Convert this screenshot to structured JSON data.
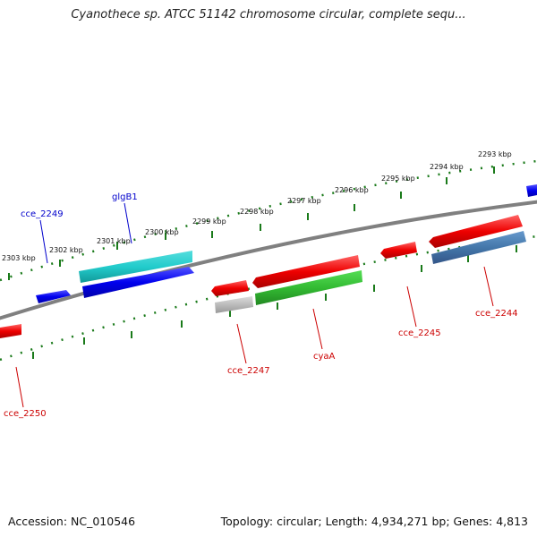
{
  "title": "Cyanothece sp. ATCC 51142 chromosome circular, complete sequ...",
  "footer": {
    "accession": "Accession: NC_010546",
    "summary": "Topology: circular; Length: 4,934,271 bp; Genes: 4,813"
  },
  "ruler": {
    "ticks": [
      "2293 kbp",
      "2294 kbp",
      "2295 kbp",
      "2296 kbp",
      "2297 kbp",
      "2298 kbp",
      "2299 kbp",
      "2300 kbp",
      "2301 kbp",
      "2302 kbp",
      "2303 kbp"
    ]
  },
  "genes": [
    {
      "label": "cce_2249",
      "color": "#0000cc",
      "strand": "forward"
    },
    {
      "label": "glgB1",
      "color": "#0000cc",
      "strand": "forward"
    },
    {
      "label": "cce_2250",
      "color": "#cc0000",
      "strand": "reverse"
    },
    {
      "label": "cce_2247",
      "color": "#cc0000",
      "strand": "reverse"
    },
    {
      "label": "cyaA",
      "color": "#cc0000",
      "strand": "reverse"
    },
    {
      "label": "cce_2245",
      "color": "#cc0000",
      "strand": "reverse"
    },
    {
      "label": "cce_2244",
      "color": "#cc0000",
      "strand": "reverse"
    }
  ],
  "colors": {
    "forward_gene": "#0000ee",
    "reverse_gene": "#ee0000",
    "ruler": "#1a7a1a",
    "backbone": "#808080",
    "cyan_feature": "#22cccc",
    "green_feature": "#33bb33",
    "steelblue_feature": "#4477aa",
    "gray_feature": "#bbbbbb"
  }
}
